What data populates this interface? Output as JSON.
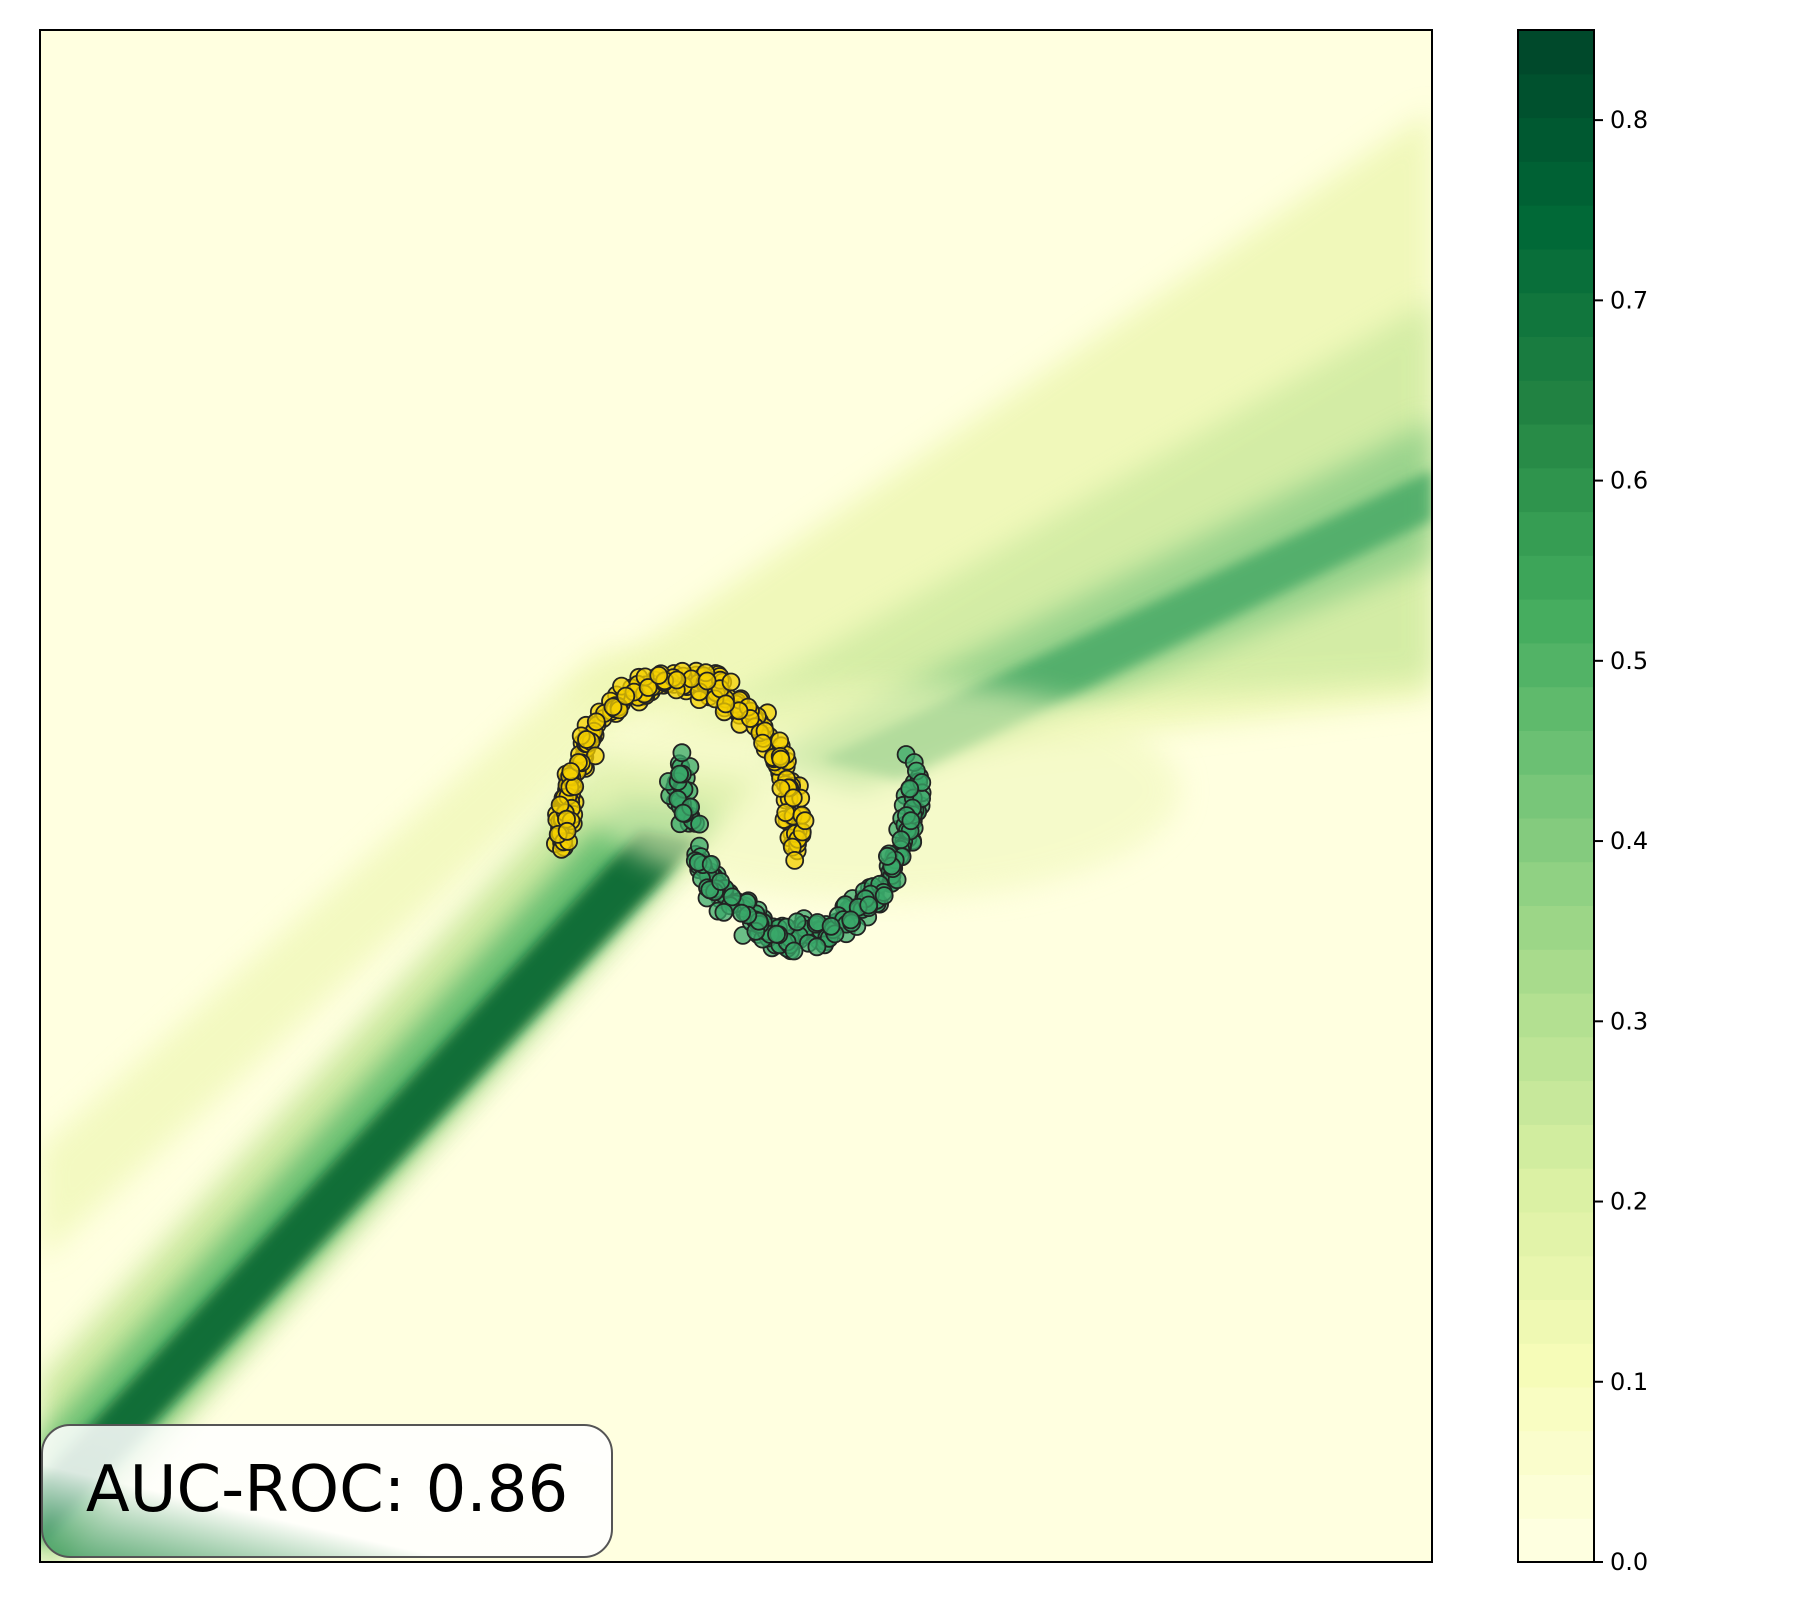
{
  "chart_data": {
    "type": "heatmap",
    "title": "",
    "xlabel": "",
    "ylabel": "",
    "colormap": "YlGn",
    "colorbar": {
      "range": [
        0.0,
        0.85
      ],
      "ticks": [
        {
          "value": 0.0,
          "label": "0.0"
        },
        {
          "value": 0.1,
          "label": "0.1"
        },
        {
          "value": 0.2,
          "label": "0.2"
        },
        {
          "value": 0.3,
          "label": "0.3"
        },
        {
          "value": 0.4,
          "label": "0.4"
        },
        {
          "value": 0.5,
          "label": "0.5"
        },
        {
          "value": 0.6,
          "label": "0.6"
        },
        {
          "value": 0.7,
          "label": "0.7"
        },
        {
          "value": 0.8,
          "label": "0.8"
        }
      ],
      "levels": 35
    },
    "series": [
      {
        "class": "yellow",
        "color": "#f5d000",
        "shape": "upper crescent",
        "count": 250
      },
      {
        "class": "green",
        "color": "#3aa86a",
        "shape": "lower crescent",
        "count": 250
      }
    ],
    "annotation": {
      "text": "AUC-ROC: 0.86"
    },
    "axes_ticks_visible": false,
    "grid": false
  }
}
